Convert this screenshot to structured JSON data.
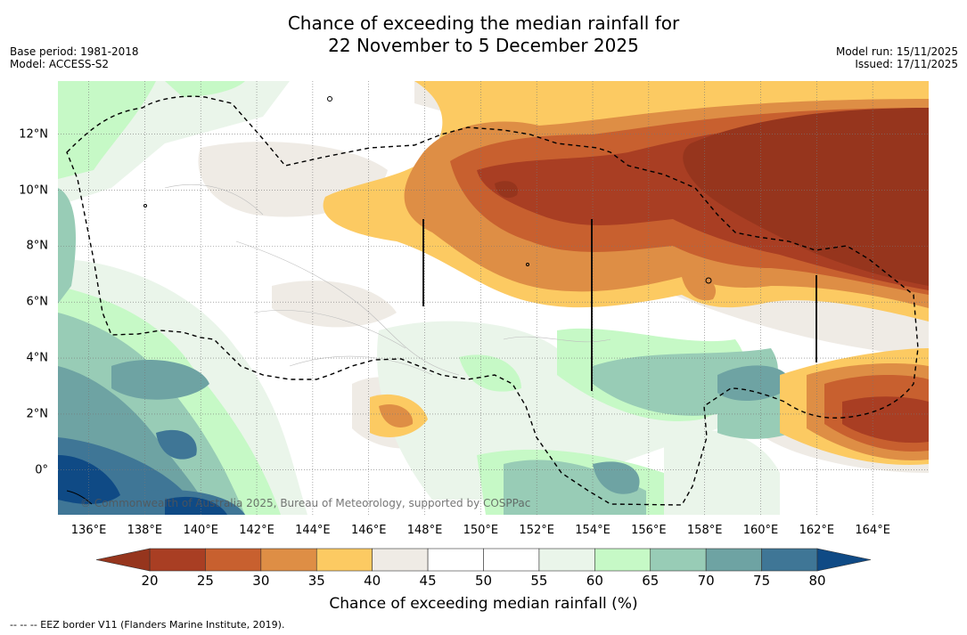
{
  "title": {
    "line1": "Chance of exceeding the median rainfall for",
    "line2": "22 November to 5 December 2025"
  },
  "meta": {
    "base_period": "Base period: 1981-2018",
    "model": "Model: ACCESS-S2",
    "model_run": "Model run: 15/11/2025",
    "issued": "Issued: 17/11/2025"
  },
  "map": {
    "lat_ticks": [
      {
        "label": "12°N",
        "value": 12
      },
      {
        "label": "10°N",
        "value": 10
      },
      {
        "label": "8°N",
        "value": 8
      },
      {
        "label": "6°N",
        "value": 6
      },
      {
        "label": "4°N",
        "value": 4
      },
      {
        "label": "2°N",
        "value": 2
      },
      {
        "label": "0°",
        "value": 0
      }
    ],
    "lon_ticks": [
      {
        "label": "136°E",
        "value": 136
      },
      {
        "label": "138°E",
        "value": 138
      },
      {
        "label": "140°E",
        "value": 140
      },
      {
        "label": "142°E",
        "value": 142
      },
      {
        "label": "144°E",
        "value": 144
      },
      {
        "label": "146°E",
        "value": 146
      },
      {
        "label": "148°E",
        "value": 148
      },
      {
        "label": "150°E",
        "value": 150
      },
      {
        "label": "152°E",
        "value": 152
      },
      {
        "label": "154°E",
        "value": 154
      },
      {
        "label": "156°E",
        "value": 156
      },
      {
        "label": "158°E",
        "value": 158
      },
      {
        "label": "160°E",
        "value": 160
      },
      {
        "label": "162°E",
        "value": 162
      },
      {
        "label": "164°E",
        "value": 164
      }
    ],
    "lon_range": [
      134.9,
      166.0
    ],
    "lat_range": [
      -1.6,
      13.9
    ],
    "credit": "© Commonwealth of Australia 2025, Bureau of Meteorology, supported by COSPPac"
  },
  "colorbar": {
    "labels": [
      "20",
      "25",
      "30",
      "35",
      "40",
      "45",
      "50",
      "55",
      "60",
      "65",
      "70",
      "75",
      "80"
    ],
    "colors": [
      "#a93e23",
      "#c8602f",
      "#de8e45",
      "#fcca62",
      "#efebe5",
      "#ffffff",
      "#ffffff",
      "#eaf5ea",
      "#c6f9c6",
      "#98ccb6",
      "#6ea3a3",
      "#3f7696"
    ],
    "under_color": "#96351d",
    "over_color": "#0f4a85",
    "title": "Chance of exceeding median rainfall (%)"
  },
  "footer": "--  --  -- EEZ border V11 (Flanders Marine Institute, 2019)."
}
